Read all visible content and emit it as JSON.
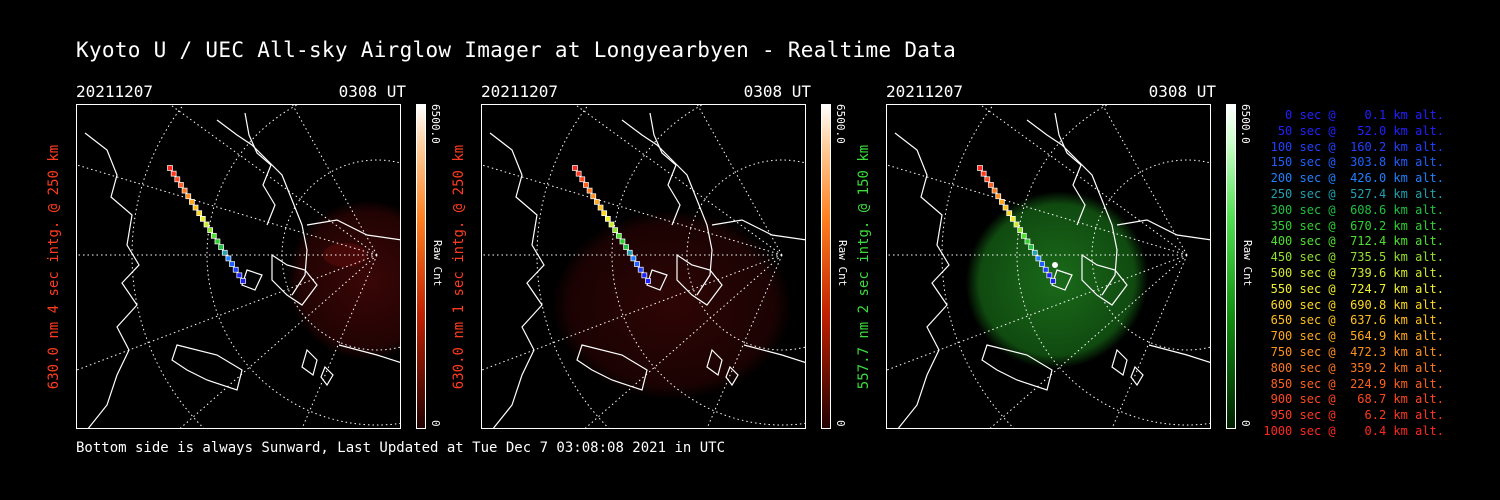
{
  "title": "Kyoto U / UEC All-sky Airglow Imager at Longyearbyen - Realtime Data",
  "footer": "Bottom side is always Sunward, Last Updated at Tue Dec  7 03:08:08 2021 in UTC",
  "panels": [
    {
      "date": "20211207",
      "time": "0308 UT",
      "ylabel": "630.0 nm 4 sec intg. @ 250 km",
      "label_color": "#ff3b1f",
      "cbar_max": "6500.0",
      "cbar_unit": "Raw Cnt",
      "cbar_min": "0",
      "colormap": "red"
    },
    {
      "date": "20211207",
      "time": "0308 UT",
      "ylabel": "630.0 nm 1 sec intg. @ 250 km",
      "label_color": "#ff3b1f",
      "cbar_max": "6500.0",
      "cbar_unit": "Raw Cnt",
      "cbar_min": "0",
      "colormap": "red"
    },
    {
      "date": "20211207",
      "time": "0308 UT",
      "ylabel": "557.7 nm 2 sec intg. @ 150 km",
      "label_color": "#3cdc3c",
      "cbar_max": "6500.0",
      "cbar_unit": "Raw Cnt",
      "cbar_min": "0",
      "colormap": "green"
    }
  ],
  "legend": [
    {
      "text": "   0 sec @    0.1 km alt.",
      "color": "#2020ff"
    },
    {
      "text": "  50 sec @   52.0 km alt.",
      "color": "#2020ff"
    },
    {
      "text": " 100 sec @  160.2 km alt.",
      "color": "#2040ff"
    },
    {
      "text": " 150 sec @  303.8 km alt.",
      "color": "#2060ff"
    },
    {
      "text": " 200 sec @  426.0 km alt.",
      "color": "#2080ff"
    },
    {
      "text": " 250 sec @  527.4 km alt.",
      "color": "#20a0b0"
    },
    {
      "text": " 300 sec @  608.6 km alt.",
      "color": "#20c040"
    },
    {
      "text": " 350 sec @  670.2 km alt.",
      "color": "#30d030"
    },
    {
      "text": " 400 sec @  712.4 km alt.",
      "color": "#50e030"
    },
    {
      "text": " 450 sec @  735.5 km alt.",
      "color": "#90e030"
    },
    {
      "text": " 500 sec @  739.6 km alt.",
      "color": "#d0e830"
    },
    {
      "text": " 550 sec @  724.7 km alt.",
      "color": "#f0f030"
    },
    {
      "text": " 600 sec @  690.8 km alt.",
      "color": "#ffd820"
    },
    {
      "text": " 650 sec @  637.6 km alt.",
      "color": "#ffc020"
    },
    {
      "text": " 700 sec @  564.9 km alt.",
      "color": "#ffa820"
    },
    {
      "text": " 750 sec @  472.3 km alt.",
      "color": "#ff9020"
    },
    {
      "text": " 800 sec @  359.2 km alt.",
      "color": "#ff7820"
    },
    {
      "text": " 850 sec @  224.9 km alt.",
      "color": "#ff6020"
    },
    {
      "text": " 900 sec @   68.7 km alt.",
      "color": "#ff4820"
    },
    {
      "text": " 950 sec @    6.2 km alt.",
      "color": "#ff3820"
    },
    {
      "text": "1000 sec @    0.4 km alt.",
      "color": "#ff2820"
    }
  ]
}
